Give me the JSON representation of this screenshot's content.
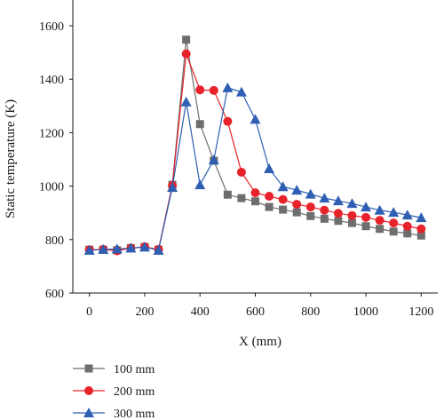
{
  "chart_data": {
    "type": "line",
    "xlabel": "X (mm)",
    "ylabel": "Static temperature (K)",
    "xlim": [
      -60,
      1260
    ],
    "ylim": [
      600,
      1600
    ],
    "xticks": [
      0,
      200,
      400,
      600,
      800,
      1000,
      1200
    ],
    "yticks": [
      600,
      800,
      1000,
      1200,
      1400,
      1600
    ],
    "legend_position": "bottom-left",
    "series": [
      {
        "name": "100 mm",
        "color": "#6e6e6e",
        "marker": "square",
        "x": [
          0,
          50,
          100,
          150,
          200,
          250,
          300,
          350,
          400,
          450,
          500,
          550,
          600,
          650,
          700,
          750,
          800,
          850,
          900,
          950,
          1000,
          1050,
          1100,
          1150,
          1200
        ],
        "y": [
          762,
          762,
          760,
          768,
          772,
          762,
          1005,
          1548,
          1232,
          1095,
          968,
          955,
          943,
          922,
          912,
          902,
          888,
          878,
          870,
          862,
          850,
          840,
          830,
          823,
          815
        ]
      },
      {
        "name": "200 mm",
        "color": "#e8222a",
        "marker": "circle",
        "x": [
          0,
          50,
          100,
          150,
          200,
          250,
          300,
          350,
          400,
          450,
          500,
          550,
          600,
          650,
          700,
          750,
          800,
          850,
          900,
          950,
          1000,
          1050,
          1100,
          1150,
          1200
        ],
        "y": [
          762,
          763,
          758,
          768,
          773,
          763,
          1002,
          1495,
          1360,
          1358,
          1242,
          1052,
          975,
          962,
          950,
          932,
          922,
          910,
          898,
          890,
          883,
          872,
          862,
          850,
          840
        ]
      },
      {
        "name": "300 mm",
        "color": "#2f5fb3",
        "marker": "triangle",
        "x": [
          0,
          50,
          100,
          150,
          200,
          250,
          300,
          350,
          400,
          450,
          500,
          550,
          600,
          650,
          700,
          750,
          800,
          850,
          900,
          950,
          1000,
          1050,
          1100,
          1150,
          1200
        ],
        "y": [
          760,
          763,
          765,
          768,
          772,
          760,
          995,
          1315,
          1005,
          1098,
          1368,
          1352,
          1250,
          1065,
          998,
          985,
          970,
          955,
          945,
          935,
          922,
          910,
          902,
          892,
          882
        ]
      }
    ]
  }
}
